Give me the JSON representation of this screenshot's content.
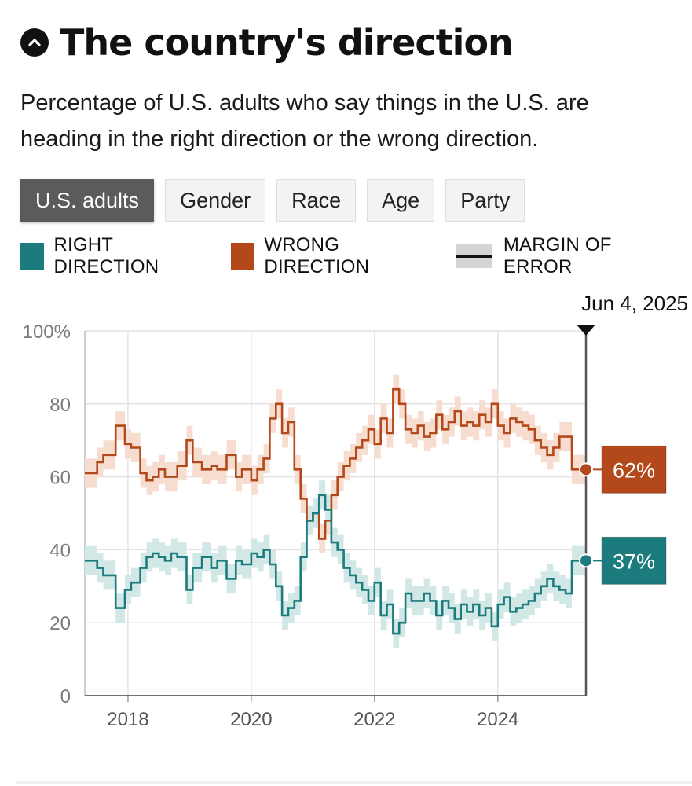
{
  "header": {
    "title": "The country's direction",
    "subtitle": "Percentage of U.S. adults who say things in the U.S. are heading in the right direction or the wrong direction."
  },
  "tabs": [
    {
      "label": "U.S. adults",
      "active": true
    },
    {
      "label": "Gender",
      "active": false
    },
    {
      "label": "Race",
      "active": false
    },
    {
      "label": "Age",
      "active": false
    },
    {
      "label": "Party",
      "active": false
    }
  ],
  "legend": {
    "right": "RIGHT DIRECTION",
    "wrong": "WRONG DIRECTION",
    "moe": "MARGIN OF ERROR"
  },
  "colors": {
    "right": "#1c7b7d",
    "wrong": "#b3481a",
    "right_band": "#d2e8e6",
    "wrong_band": "#f7dcd0",
    "grid": "#e3e3e3",
    "axis": "#444444"
  },
  "chart_data": {
    "type": "line",
    "title": "The country's direction",
    "xlabel": "",
    "ylabel": "",
    "x_range": [
      2017.3,
      2025.43
    ],
    "ylim": [
      0,
      100
    ],
    "y_ticks": [
      0,
      20,
      40,
      60,
      80,
      100
    ],
    "y_tick_labels": [
      "0",
      "20",
      "40",
      "60",
      "80",
      "100%"
    ],
    "x_ticks": [
      2018,
      2020,
      2022,
      2024
    ],
    "x_tick_labels": [
      "2018",
      "2020",
      "2022",
      "2024"
    ],
    "margin_of_error": 4,
    "marker": {
      "label": "Jun 4, 2025",
      "x": 2025.43
    },
    "end_labels": {
      "wrong": "62%",
      "right": "37%"
    },
    "series": [
      {
        "name": "WRONG DIRECTION",
        "key": "wrong",
        "x": [
          2017.3,
          2017.5,
          2017.6,
          2017.8,
          2017.95,
          2018.05,
          2018.2,
          2018.3,
          2018.4,
          2018.5,
          2018.6,
          2018.7,
          2018.8,
          2018.95,
          2019.05,
          2019.2,
          2019.35,
          2019.45,
          2019.6,
          2019.75,
          2019.85,
          2020.0,
          2020.1,
          2020.2,
          2020.3,
          2020.4,
          2020.5,
          2020.6,
          2020.7,
          2020.8,
          2020.9,
          2021.0,
          2021.1,
          2021.2,
          2021.3,
          2021.4,
          2021.5,
          2021.6,
          2021.7,
          2021.8,
          2021.9,
          2022.0,
          2022.1,
          2022.2,
          2022.3,
          2022.4,
          2022.5,
          2022.6,
          2022.7,
          2022.8,
          2022.9,
          2023.0,
          2023.1,
          2023.2,
          2023.3,
          2023.4,
          2023.5,
          2023.6,
          2023.7,
          2023.8,
          2023.9,
          2024.0,
          2024.1,
          2024.2,
          2024.3,
          2024.4,
          2024.5,
          2024.6,
          2024.7,
          2024.8,
          2024.9,
          2025.0,
          2025.1,
          2025.2,
          2025.3,
          2025.43
        ],
        "values": [
          61,
          64,
          66,
          74,
          69,
          68,
          61,
          59,
          60,
          62,
          60,
          60,
          63,
          70,
          64,
          62,
          63,
          62,
          66,
          60,
          62,
          59,
          62,
          65,
          76,
          80,
          72,
          75,
          62,
          54,
          48,
          50,
          43,
          48,
          55,
          60,
          63,
          65,
          68,
          70,
          73,
          69,
          76,
          72,
          84,
          80,
          73,
          72,
          74,
          71,
          72,
          77,
          73,
          75,
          78,
          74,
          75,
          74,
          77,
          75,
          80,
          74,
          72,
          76,
          75,
          74,
          73,
          70,
          68,
          66,
          68,
          71,
          71,
          62,
          62,
          62
        ]
      },
      {
        "name": "RIGHT DIRECTION",
        "key": "right",
        "x": [
          2017.3,
          2017.5,
          2017.6,
          2017.8,
          2017.95,
          2018.05,
          2018.2,
          2018.3,
          2018.4,
          2018.5,
          2018.6,
          2018.7,
          2018.8,
          2018.95,
          2019.05,
          2019.2,
          2019.35,
          2019.45,
          2019.6,
          2019.75,
          2019.85,
          2020.0,
          2020.1,
          2020.2,
          2020.3,
          2020.4,
          2020.5,
          2020.6,
          2020.7,
          2020.8,
          2020.9,
          2021.0,
          2021.1,
          2021.2,
          2021.3,
          2021.4,
          2021.5,
          2021.6,
          2021.7,
          2021.8,
          2021.9,
          2022.0,
          2022.1,
          2022.2,
          2022.3,
          2022.4,
          2022.5,
          2022.6,
          2022.7,
          2022.8,
          2022.9,
          2023.0,
          2023.1,
          2023.2,
          2023.3,
          2023.4,
          2023.5,
          2023.6,
          2023.7,
          2023.8,
          2023.9,
          2024.0,
          2024.1,
          2024.2,
          2024.3,
          2024.4,
          2024.5,
          2024.6,
          2024.7,
          2024.8,
          2024.9,
          2025.0,
          2025.1,
          2025.2,
          2025.3,
          2025.43
        ],
        "values": [
          37,
          35,
          33,
          24,
          29,
          31,
          35,
          38,
          39,
          38,
          37,
          39,
          38,
          29,
          35,
          38,
          35,
          37,
          32,
          37,
          36,
          39,
          38,
          40,
          36,
          30,
          22,
          24,
          26,
          38,
          48,
          50,
          55,
          51,
          42,
          40,
          35,
          33,
          31,
          29,
          26,
          31,
          22,
          25,
          17,
          20,
          28,
          26,
          26,
          28,
          26,
          22,
          26,
          24,
          21,
          25,
          23,
          25,
          22,
          24,
          19,
          25,
          27,
          23,
          24,
          25,
          26,
          28,
          30,
          32,
          30,
          29,
          28,
          37,
          37,
          37
        ]
      }
    ]
  }
}
